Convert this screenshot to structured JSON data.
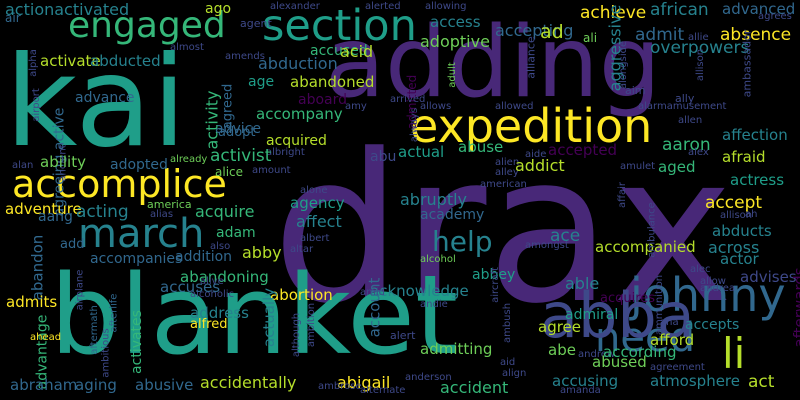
{
  "palette": {
    "background": "#000000",
    "dark_purple": "#440154",
    "purple": "#482878",
    "indigo": "#3e4989",
    "blue": "#31688e",
    "teal_blue": "#26828e",
    "teal": "#1f9e89",
    "green": "#35b779",
    "light_green": "#6ece58",
    "yellow_green": "#b5de2b",
    "yellow": "#fde725"
  },
  "words": [
    {
      "text": "drax",
      "color": "#482878"
    },
    {
      "text": "adding",
      "color": "#482878"
    },
    {
      "text": "blanket",
      "color": "#1f9e89"
    },
    {
      "text": "kai",
      "color": "#1f9e89"
    },
    {
      "text": "expedition",
      "color": "#fde725"
    },
    {
      "text": "accomplice",
      "color": "#fde725"
    },
    {
      "text": "section",
      "color": "#1f9e89"
    },
    {
      "text": "engaged",
      "color": "#35b779"
    },
    {
      "text": "march",
      "color": "#26828e"
    },
    {
      "text": "johnny",
      "color": "#31688e"
    },
    {
      "text": "li",
      "color": "#b5de2b"
    },
    {
      "text": "need",
      "color": "#31688e"
    },
    {
      "text": "help",
      "color": "#26828e"
    },
    {
      "text": "abba",
      "color": "#3e4989"
    },
    {
      "text": "achieve",
      "color": "#fde725"
    },
    {
      "text": "african",
      "color": "#26828e"
    },
    {
      "text": "advanced",
      "color": "#31688e"
    },
    {
      "text": "agrees",
      "color": "#3e4989"
    },
    {
      "text": "actionactivated",
      "color": "#26828e"
    },
    {
      "text": "ago",
      "color": "#b5de2b"
    },
    {
      "text": "agent",
      "color": "#3e4989"
    },
    {
      "text": "alerted",
      "color": "#3e4989"
    },
    {
      "text": "allowing",
      "color": "#3e4989"
    },
    {
      "text": "accepting",
      "color": "#31688e"
    },
    {
      "text": "alexander",
      "color": "#3e4989"
    },
    {
      "text": "air",
      "color": "#31688e"
    },
    {
      "text": "access",
      "color": "#26828e"
    },
    {
      "text": "adoptive",
      "color": "#6ece58"
    },
    {
      "text": "ad",
      "color": "#b5de2b"
    },
    {
      "text": "overpowers",
      "color": "#26828e"
    },
    {
      "text": "absence",
      "color": "#fde725"
    },
    {
      "text": "admit",
      "color": "#31688e"
    },
    {
      "text": "ali",
      "color": "#6ece58"
    },
    {
      "text": "allie",
      "color": "#3e4989"
    },
    {
      "text": "amends",
      "color": "#3e4989"
    },
    {
      "text": "almost",
      "color": "#3e4989"
    },
    {
      "text": "alpha",
      "color": "#3e4989"
    },
    {
      "text": "accused",
      "color": "#35b779"
    },
    {
      "text": "acid",
      "color": "#b5de2b"
    },
    {
      "text": "activate",
      "color": "#b5de2b"
    },
    {
      "text": "abducted",
      "color": "#26828e"
    },
    {
      "text": "abduction",
      "color": "#31688e"
    },
    {
      "text": "age",
      "color": "#1f9e89"
    },
    {
      "text": "abandoned",
      "color": "#b5de2b"
    },
    {
      "text": "aggressive",
      "color": "#26828e"
    },
    {
      "text": "alliance",
      "color": "#3e4989"
    },
    {
      "text": "alongside",
      "color": "#3e4989"
    },
    {
      "text": "aim",
      "color": "#3e4989"
    },
    {
      "text": "ambassador",
      "color": "#3e4989"
    },
    {
      "text": "ally",
      "color": "#3e4989"
    },
    {
      "text": "allison",
      "color": "#3e4989"
    },
    {
      "text": "adult",
      "color": "#6ece58"
    },
    {
      "text": "allows",
      "color": "#3e4989"
    },
    {
      "text": "allowed",
      "color": "#3e4989"
    },
    {
      "text": "alarmamusement",
      "color": "#3e4989"
    },
    {
      "text": "affection",
      "color": "#26828e"
    },
    {
      "text": "allen",
      "color": "#3e4989"
    },
    {
      "text": "aaron",
      "color": "#35b779"
    },
    {
      "text": "acknowledges",
      "color": "#26828e"
    },
    {
      "text": "afraid",
      "color": "#b5de2b"
    },
    {
      "text": "alex",
      "color": "#3e4989"
    },
    {
      "text": "advance",
      "color": "#31688e"
    },
    {
      "text": "airport",
      "color": "#3e4989"
    },
    {
      "text": "aboard",
      "color": "#440154"
    },
    {
      "text": "agreed",
      "color": "#31688e"
    },
    {
      "text": "accompany",
      "color": "#35b779"
    },
    {
      "text": "adopt",
      "color": "#31688e"
    },
    {
      "text": "advice",
      "color": "#31688e"
    },
    {
      "text": "activity",
      "color": "#35b779"
    },
    {
      "text": "admitted",
      "color": "#440154"
    },
    {
      "text": "acquired",
      "color": "#b5de2b"
    },
    {
      "text": "always",
      "color": "#3e4989"
    },
    {
      "text": "amy",
      "color": "#3e4989"
    },
    {
      "text": "arrived",
      "color": "#3e4989"
    },
    {
      "text": "agreeing active",
      "color": "#31688e"
    },
    {
      "text": "ancient",
      "color": "#3e4989"
    },
    {
      "text": "actual",
      "color": "#1f9e89"
    },
    {
      "text": "abuse",
      "color": "#35b779"
    },
    {
      "text": "accepted",
      "color": "#440154"
    },
    {
      "text": "alan",
      "color": "#3e4989"
    },
    {
      "text": "albright",
      "color": "#3e4989"
    },
    {
      "text": "ability",
      "color": "#6ece58"
    },
    {
      "text": "adopted",
      "color": "#31688e"
    },
    {
      "text": "activist",
      "color": "#35b779"
    },
    {
      "text": "already",
      "color": "#6ece58"
    },
    {
      "text": "abu",
      "color": "#3e4989"
    },
    {
      "text": "alien",
      "color": "#3e4989"
    },
    {
      "text": "alley",
      "color": "#3e4989"
    },
    {
      "text": "aide",
      "color": "#3e4989"
    },
    {
      "text": "amulet",
      "color": "#3e4989"
    },
    {
      "text": "aged",
      "color": "#35b779"
    },
    {
      "text": "alice",
      "color": "#6ece58"
    },
    {
      "text": "amount",
      "color": "#3e4989"
    },
    {
      "text": "addict",
      "color": "#b5de2b"
    },
    {
      "text": "actress",
      "color": "#1f9e89"
    },
    {
      "text": "american",
      "color": "#3e4989"
    },
    {
      "text": "agency",
      "color": "#1f9e89"
    },
    {
      "text": "alone",
      "color": "#3e4989"
    },
    {
      "text": "abruptly",
      "color": "#26828e"
    },
    {
      "text": "affair",
      "color": "#3e4989"
    },
    {
      "text": "america",
      "color": "#6ece58"
    },
    {
      "text": "adventure",
      "color": "#fde725"
    },
    {
      "text": "alias",
      "color": "#3e4989"
    },
    {
      "text": "acquire",
      "color": "#35b779"
    },
    {
      "text": "accept",
      "color": "#fde725"
    },
    {
      "text": "aang",
      "color": "#31688e"
    },
    {
      "text": "acting",
      "color": "#26828e"
    },
    {
      "text": "affect",
      "color": "#26828e"
    },
    {
      "text": "academy",
      "color": "#31688e"
    },
    {
      "text": "allison",
      "color": "#3e4989"
    },
    {
      "text": "abducts",
      "color": "#26828e"
    },
    {
      "text": "adam",
      "color": "#35b779"
    },
    {
      "text": "albert",
      "color": "#3e4989"
    },
    {
      "text": "ace",
      "color": "#26828e"
    },
    {
      "text": "ah",
      "color": "#3e4989"
    },
    {
      "text": "add",
      "color": "#31688e"
    },
    {
      "text": "abby",
      "color": "#b5de2b"
    },
    {
      "text": "altar",
      "color": "#3e4989"
    },
    {
      "text": "amongst",
      "color": "#3e4989"
    },
    {
      "text": "across",
      "color": "#26828e"
    },
    {
      "text": "actor",
      "color": "#26828e"
    },
    {
      "text": "accompanied",
      "color": "#b5de2b"
    },
    {
      "text": "ambulance",
      "color": "#3e4989"
    },
    {
      "text": "andrea",
      "color": "#3e4989"
    },
    {
      "text": "also",
      "color": "#3e4989"
    },
    {
      "text": "accompanies",
      "color": "#31688e"
    },
    {
      "text": "addition",
      "color": "#31688e"
    },
    {
      "text": "alcohol",
      "color": "#6ece58"
    },
    {
      "text": "ammunition",
      "color": "#3e4989"
    },
    {
      "text": "advises",
      "color": "#3e4989"
    },
    {
      "text": "abandon",
      "color": "#31688e"
    },
    {
      "text": "afterwards",
      "color": "#440154"
    },
    {
      "text": "abandoning",
      "color": "#35b779"
    },
    {
      "text": "abbey",
      "color": "#1f9e89"
    },
    {
      "text": "alec",
      "color": "#3e4989"
    },
    {
      "text": "allow",
      "color": "#3e4989"
    },
    {
      "text": "alive",
      "color": "#3e4989"
    },
    {
      "text": "alcoholic",
      "color": "#3e4989"
    },
    {
      "text": "accuses",
      "color": "#31688e"
    },
    {
      "text": "able",
      "color": "#26828e"
    },
    {
      "text": "acquires",
      "color": "#440154"
    },
    {
      "text": "abortion",
      "color": "#fde725"
    },
    {
      "text": "acknowledge",
      "color": "#26828e"
    },
    {
      "text": "admiral",
      "color": "#1f9e89"
    },
    {
      "text": "admits",
      "color": "#fde725"
    },
    {
      "text": "airplane",
      "color": "#3e4989"
    },
    {
      "text": "aftermath",
      "color": "#31688e"
    },
    {
      "text": "afterlife",
      "color": "#31688e"
    },
    {
      "text": "accepts",
      "color": "#26828e"
    },
    {
      "text": "advantage",
      "color": "#35b779"
    },
    {
      "text": "address",
      "color": "#26828e"
    },
    {
      "text": "account",
      "color": "#31688e"
    },
    {
      "text": "amid",
      "color": "#3e4989"
    },
    {
      "text": "andie",
      "color": "#3e4989"
    },
    {
      "text": "ambush",
      "color": "#3e4989"
    },
    {
      "text": "aircraft",
      "color": "#3e4989"
    },
    {
      "text": "ambitious",
      "color": "#3e4989"
    },
    {
      "text": "alfred",
      "color": "#fde725"
    },
    {
      "text": "activates",
      "color": "#35b779"
    },
    {
      "text": "actually",
      "color": "#26828e"
    },
    {
      "text": "ahead",
      "color": "#fde725"
    },
    {
      "text": "alert",
      "color": "#3e4989"
    },
    {
      "text": "agree",
      "color": "#b5de2b"
    },
    {
      "text": "afford",
      "color": "#b5de2b"
    },
    {
      "text": "ana",
      "color": "#3e4989"
    },
    {
      "text": "although",
      "color": "#3e4989"
    },
    {
      "text": "ambition",
      "color": "#3e4989"
    },
    {
      "text": "admitting",
      "color": "#6ece58"
    },
    {
      "text": "abe",
      "color": "#6ece58"
    },
    {
      "text": "andrew",
      "color": "#3e4989"
    },
    {
      "text": "according",
      "color": "#35b779"
    },
    {
      "text": "abraham",
      "color": "#31688e"
    },
    {
      "text": "aging",
      "color": "#31688e"
    },
    {
      "text": "abusive",
      "color": "#31688e"
    },
    {
      "text": "abused",
      "color": "#6ece58"
    },
    {
      "text": "accidentally",
      "color": "#b5de2b"
    },
    {
      "text": "abigail",
      "color": "#fde725"
    },
    {
      "text": "aid",
      "color": "#3e4989"
    },
    {
      "text": "align",
      "color": "#3e4989"
    },
    {
      "text": "anderson",
      "color": "#3e4989"
    },
    {
      "text": "accident",
      "color": "#35b779"
    },
    {
      "text": "accusing",
      "color": "#26828e"
    },
    {
      "text": "atmosphere",
      "color": "#26828e"
    },
    {
      "text": "act",
      "color": "#b5de2b"
    },
    {
      "text": "agreement",
      "color": "#3e4989"
    },
    {
      "text": "ambrose",
      "color": "#3e4989"
    },
    {
      "text": "alternate",
      "color": "#3e4989"
    },
    {
      "text": "amanda",
      "color": "#3e4989"
    }
  ]
}
